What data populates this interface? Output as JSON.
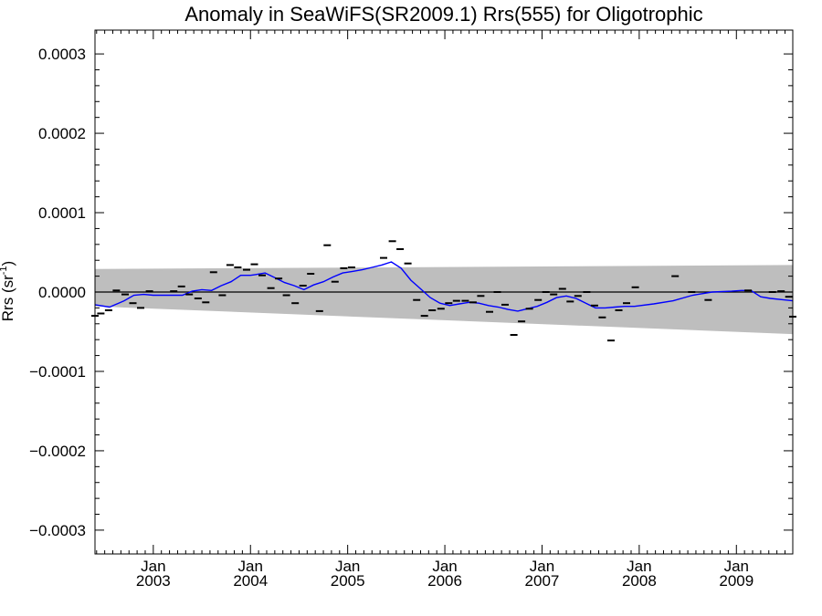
{
  "chart_data": {
    "type": "line",
    "title": "Anomaly in SeaWiFS(SR2009.1) Rrs(555) for Oligotrophic",
    "ylabel": "Rrs (sr",
    "ylabel_sup": "-1",
    "ylabel_close": ")",
    "xlabel": "",
    "xlim": [
      2002.4,
      2009.58
    ],
    "ylim": [
      -0.00033,
      0.00033
    ],
    "y_ticks": [
      {
        "value": 0.0003,
        "label": "0.0003"
      },
      {
        "value": 0.0002,
        "label": "0.0002"
      },
      {
        "value": 0.0001,
        "label": "0.0001"
      },
      {
        "value": 0.0,
        "label": "0.0000"
      },
      {
        "value": -0.0001,
        "label": "−0.0001"
      },
      {
        "value": -0.0002,
        "label": "−0.0002"
      },
      {
        "value": -0.0003,
        "label": "−0.0003"
      }
    ],
    "x_ticks": [
      {
        "value": 2003.0,
        "label": "Jan",
        "sublabel": "2003"
      },
      {
        "value": 2004.0,
        "label": "Jan",
        "sublabel": "2004"
      },
      {
        "value": 2005.0,
        "label": "Jan",
        "sublabel": "2005"
      },
      {
        "value": 2006.0,
        "label": "Jan",
        "sublabel": "2006"
      },
      {
        "value": 2007.0,
        "label": "Jan",
        "sublabel": "2007"
      },
      {
        "value": 2008.0,
        "label": "Jan",
        "sublabel": "2008"
      },
      {
        "value": 2009.0,
        "label": "Jan",
        "sublabel": "2009"
      }
    ],
    "band": {
      "color": "#bebebe",
      "x": [
        2002.4,
        2009.58
      ],
      "upper": [
        2.9e-05,
        3.4e-05
      ],
      "lower": [
        -1.8e-05,
        -5.3e-05
      ]
    },
    "zero_line": {
      "value": 0.0,
      "color": "#000000"
    },
    "monthly_points": {
      "name": "monthly anomaly",
      "color": "#000000",
      "x": [
        2002.4,
        2002.46,
        2002.54,
        2002.62,
        2002.71,
        2002.79,
        2002.87,
        2002.96,
        2003.21,
        2003.29,
        2003.37,
        2003.46,
        2003.54,
        2003.62,
        2003.71,
        2003.79,
        2003.87,
        2003.96,
        2004.04,
        2004.12,
        2004.21,
        2004.29,
        2004.37,
        2004.46,
        2004.54,
        2004.62,
        2004.71,
        2004.79,
        2004.87,
        2004.96,
        2005.04,
        2005.37,
        2005.46,
        2005.54,
        2005.62,
        2005.71,
        2005.79,
        2005.87,
        2005.96,
        2006.04,
        2006.12,
        2006.21,
        2006.29,
        2006.37,
        2006.46,
        2006.54,
        2006.62,
        2006.71,
        2006.79,
        2006.87,
        2006.96,
        2007.04,
        2007.12,
        2007.21,
        2007.29,
        2007.37,
        2007.46,
        2007.54,
        2007.62,
        2007.71,
        2007.79,
        2007.87,
        2007.96,
        2008.37,
        2008.54,
        2008.71,
        2009.12,
        2009.37,
        2009.46,
        2009.54,
        2009.58
      ],
      "y": [
        -3e-05,
        -2.7e-05,
        -2.3e-05,
        2e-06,
        -3e-06,
        -1.4e-05,
        -2e-05,
        1e-06,
        1e-06,
        7e-06,
        -3e-06,
        -8e-06,
        -1.3e-05,
        2.5e-05,
        -4e-06,
        3.4e-05,
        3.1e-05,
        2.8e-05,
        3.5e-05,
        2.1e-05,
        5e-06,
        1.7e-05,
        -4e-06,
        -1.4e-05,
        8e-06,
        2.3e-05,
        -2.4e-05,
        5.9e-05,
        1.3e-05,
        3e-05,
        3.1e-05,
        4.3e-05,
        6.4e-05,
        5.4e-05,
        3.6e-05,
        -1e-05,
        -3e-05,
        -2.3e-05,
        -2.1e-05,
        -1.4e-05,
        -1.1e-05,
        -1.1e-05,
        -1.3e-05,
        -5e-06,
        -2.5e-05,
        0.0,
        -1.6e-05,
        -5.4e-05,
        -3.7e-05,
        -2.1e-05,
        -1e-05,
        0.0,
        -3e-06,
        4e-06,
        -1.2e-05,
        -5e-06,
        0.0,
        -1.7e-05,
        -3.2e-05,
        -6.1e-05,
        -2.3e-05,
        -1.4e-05,
        6e-06,
        2e-05,
        0.0,
        -1e-05,
        2e-06,
        0.0,
        1e-06,
        -6e-06,
        -3.1e-05
      ]
    },
    "smoothed_line": {
      "name": "running mean",
      "color": "#0000ff",
      "x": [
        2002.4,
        2002.55,
        2002.7,
        2002.8,
        2002.9,
        2003.0,
        2003.2,
        2003.3,
        2003.4,
        2003.5,
        2003.6,
        2003.7,
        2003.8,
        2003.9,
        2004.0,
        2004.05,
        2004.15,
        2004.25,
        2004.35,
        2004.45,
        2004.55,
        2004.65,
        2004.75,
        2004.85,
        2004.95,
        2005.05,
        2005.15,
        2005.25,
        2005.35,
        2005.45,
        2005.55,
        2005.65,
        2005.75,
        2005.85,
        2005.95,
        2006.05,
        2006.15,
        2006.25,
        2006.35,
        2006.45,
        2006.55,
        2006.65,
        2006.75,
        2006.85,
        2006.95,
        2007.05,
        2007.15,
        2007.25,
        2007.35,
        2007.45,
        2007.55,
        2007.65,
        2007.75,
        2007.85,
        2007.95,
        2008.15,
        2008.35,
        2008.55,
        2008.75,
        2008.95,
        2009.05,
        2009.15,
        2009.25,
        2009.35,
        2009.5,
        2009.58
      ],
      "y": [
        -1.6e-05,
        -1.9e-05,
        -1.1e-05,
        -4e-06,
        -3e-06,
        -4e-06,
        -4e-06,
        -4e-06,
        1e-06,
        3e-06,
        2e-06,
        8e-06,
        1.3e-05,
        2.1e-05,
        2.1e-05,
        2.2e-05,
        2.4e-05,
        1.8e-05,
        1.2e-05,
        8e-06,
        3e-06,
        9e-06,
        1.3e-05,
        1.9e-05,
        2.4e-05,
        2.6e-05,
        2.8e-05,
        3.1e-05,
        3.4e-05,
        3.8e-05,
        3e-05,
        1.5e-05,
        4e-06,
        -7e-06,
        -1.4e-05,
        -1.7e-05,
        -1.5e-05,
        -1.3e-05,
        -1.4e-05,
        -1.7e-05,
        -1.9e-05,
        -2.2e-05,
        -2.4e-05,
        -2.1e-05,
        -1.8e-05,
        -1.3e-05,
        -7e-06,
        -5e-06,
        -8e-06,
        -1.4e-05,
        -2e-05,
        -2e-05,
        -1.9e-05,
        -1.8e-05,
        -1.8e-05,
        -1.5e-05,
        -1.1e-05,
        -4e-06,
        0.0,
        1e-06,
        2e-06,
        2e-06,
        -6e-06,
        -8e-06,
        -1e-05,
        -1.1e-05
      ]
    }
  }
}
